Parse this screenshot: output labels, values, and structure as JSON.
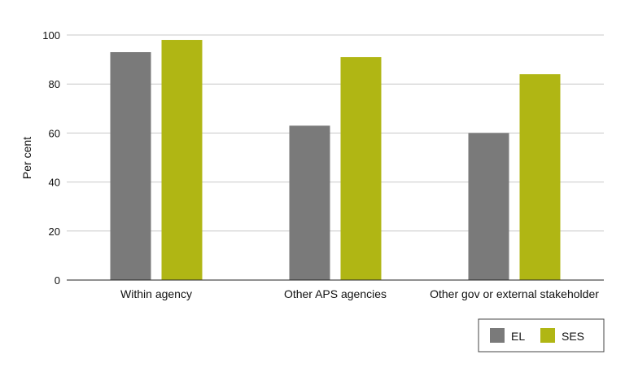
{
  "chart_data": {
    "type": "bar",
    "ylabel": "Per cent",
    "ylim": [
      0,
      100
    ],
    "yticks": [
      0,
      20,
      40,
      60,
      80,
      100
    ],
    "grid": true,
    "categories": [
      "Within agency",
      "Other APS agencies",
      "Other gov or external stakeholder"
    ],
    "series": [
      {
        "name": "EL",
        "color": "#7a7a7a",
        "values": [
          93,
          63,
          60
        ]
      },
      {
        "name": "SES",
        "color": "#b0b614",
        "values": [
          98,
          91,
          84
        ]
      }
    ],
    "legend_position": "bottom-right"
  }
}
